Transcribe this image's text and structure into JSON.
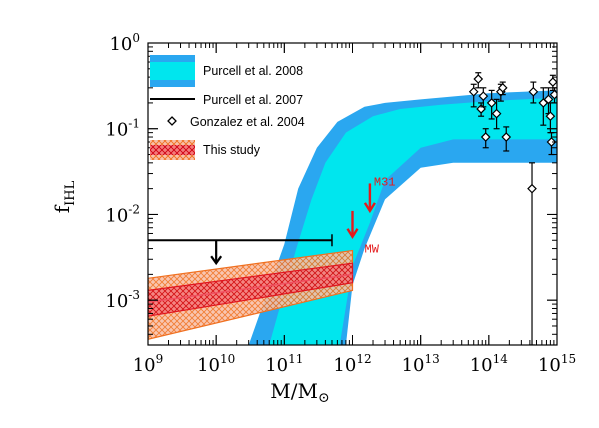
{
  "chart_data": {
    "type": "area",
    "xlabel": {
      "main": "M/M",
      "sub": "⊙"
    },
    "ylabel": {
      "main": "f",
      "sub": "IHL"
    },
    "x_scale": "log",
    "y_scale": "log",
    "xlim": [
      1000000000.0,
      1000000000000000.0
    ],
    "ylim": [
      0.0003,
      1
    ],
    "x_ticks": [
      {
        "value": 1000000000.0,
        "base": "10",
        "exp": "9"
      },
      {
        "value": 10000000000.0,
        "base": "10",
        "exp": "10"
      },
      {
        "value": 100000000000.0,
        "base": "10",
        "exp": "11"
      },
      {
        "value": 1000000000000.0,
        "base": "10",
        "exp": "12"
      },
      {
        "value": 10000000000000.0,
        "base": "10",
        "exp": "13"
      },
      {
        "value": 100000000000000.0,
        "base": "10",
        "exp": "14"
      },
      {
        "value": 1000000000000000.0,
        "base": "10",
        "exp": "15"
      }
    ],
    "y_ticks": [
      {
        "value": 0.001,
        "base": "10",
        "exp": "-3"
      },
      {
        "value": 0.01,
        "base": "10",
        "exp": "-2"
      },
      {
        "value": 0.1,
        "base": "10",
        "exp": "-1"
      },
      {
        "value": 1,
        "base": "10",
        "exp": "0"
      }
    ],
    "colors": {
      "purcell2008_outer": "#2aa7f0",
      "purcell2008_inner": "#00e6ee",
      "this_study_fill": "#f4a58a",
      "this_study_hatch_outer": "#f07020",
      "this_study_hatch_inner": "#e0141e",
      "this_study_center": "#f05060",
      "arrow_red": "#e41a1c",
      "black": "#000000"
    },
    "legend": {
      "placement": "top-left",
      "entries": [
        {
          "key": "purcell2008",
          "label": "Purcell et al. 2008"
        },
        {
          "key": "purcell2007",
          "label": "Purcell et al. 2007"
        },
        {
          "key": "gonzalez2004",
          "label": "Gonzalez et al. 2004"
        },
        {
          "key": "this_study",
          "label": "This study"
        }
      ]
    },
    "purcell2008_band": {
      "outer_upper": [
        [
          30000000000.0,
          0.0003
        ],
        [
          100000000000.0,
          0.0045
        ],
        [
          160000000000.0,
          0.02
        ],
        [
          300000000000.0,
          0.06
        ],
        [
          600000000000.0,
          0.12
        ],
        [
          1500000000000.0,
          0.18
        ],
        [
          3000000000000.0,
          0.2
        ],
        [
          10000000000000.0,
          0.22
        ],
        [
          100000000000000.0,
          0.26
        ],
        [
          1000000000000000.0,
          0.28
        ]
      ],
      "outer_lower": [
        [
          1000000000000000.0,
          0.04
        ],
        [
          100000000000000.0,
          0.04
        ],
        [
          30000000000000.0,
          0.04
        ],
        [
          10000000000000.0,
          0.035
        ],
        [
          3000000000000.0,
          0.015
        ],
        [
          1500000000000.0,
          0.004
        ],
        [
          1000000000000.0,
          0.0015
        ],
        [
          800000000000.0,
          0.0003
        ]
      ],
      "inner_upper": [
        [
          60000000000.0,
          0.0003
        ],
        [
          150000000000.0,
          0.004
        ],
        [
          250000000000.0,
          0.015
        ],
        [
          400000000000.0,
          0.04
        ],
        [
          800000000000.0,
          0.09
        ],
        [
          2000000000000.0,
          0.14
        ],
        [
          5000000000000.0,
          0.17
        ],
        [
          20000000000000.0,
          0.19
        ],
        [
          100000000000000.0,
          0.21
        ],
        [
          1000000000000000.0,
          0.23
        ]
      ],
      "inner_lower": [
        [
          1000000000000000.0,
          0.075
        ],
        [
          100000000000000.0,
          0.075
        ],
        [
          30000000000000.0,
          0.075
        ],
        [
          10000000000000.0,
          0.06
        ],
        [
          3000000000000.0,
          0.025
        ],
        [
          1800000000000.0,
          0.008
        ],
        [
          1000000000000.0,
          0.0025
        ],
        [
          650000000000.0,
          0.0003
        ]
      ]
    },
    "this_study": {
      "x_range": [
        1000000000.0,
        1000000000000.0
      ],
      "outer_lower_y": [
        0.00035,
        0.0013
      ],
      "outer_upper_y": [
        0.0018,
        0.0038
      ],
      "inner_lower_y": [
        0.00065,
        0.0016
      ],
      "inner_upper_y": [
        0.0013,
        0.0027
      ],
      "center_y": [
        0.00095,
        0.002
      ]
    },
    "purcell2007": {
      "x_range": [
        1000000000.0,
        500000000000.0
      ],
      "y": 0.005,
      "arrow_x": 10000000000.0,
      "arrow_to_y": 0.0027
    },
    "gonzalez2004": [
      {
        "x": 60000000000000.0,
        "y": 0.27,
        "lo": 0.18,
        "hi": 0.33
      },
      {
        "x": 70000000000000.0,
        "y": 0.38,
        "lo": 0.3,
        "hi": 0.45
      },
      {
        "x": 77000000000000.0,
        "y": 0.17,
        "lo": 0.14,
        "hi": 0.2
      },
      {
        "x": 83000000000000.0,
        "y": 0.24,
        "lo": 0.18,
        "hi": 0.3
      },
      {
        "x": 90000000000000.0,
        "y": 0.08,
        "lo": 0.06,
        "hi": 0.1
      },
      {
        "x": 110000000000000.0,
        "y": 0.2,
        "lo": 0.13,
        "hi": 0.28
      },
      {
        "x": 130000000000000.0,
        "y": 0.15,
        "lo": 0.1,
        "hi": 0.22
      },
      {
        "x": 150000000000000.0,
        "y": 0.27,
        "lo": 0.21,
        "hi": 0.33
      },
      {
        "x": 160000000000000.0,
        "y": 0.3,
        "lo": 0.25,
        "hi": 0.35
      },
      {
        "x": 180000000000000.0,
        "y": 0.08,
        "lo": 0.055,
        "hi": 0.105
      },
      {
        "x": 430000000000000.0,
        "y": 0.02,
        "lo": 0.0003,
        "hi": 0.04
      },
      {
        "x": 450000000000000.0,
        "y": 0.27,
        "lo": 0.2,
        "hi": 0.35
      },
      {
        "x": 630000000000000.0,
        "y": 0.2,
        "lo": 0.11,
        "hi": 0.3
      },
      {
        "x": 750000000000000.0,
        "y": 0.22,
        "lo": 0.15,
        "hi": 0.3
      },
      {
        "x": 800000000000000.0,
        "y": 0.14,
        "lo": 0.09,
        "hi": 0.2
      },
      {
        "x": 830000000000000.0,
        "y": 0.07,
        "lo": 0.05,
        "hi": 0.09
      },
      {
        "x": 870000000000000.0,
        "y": 0.35,
        "lo": 0.28,
        "hi": 0.42
      },
      {
        "x": 920000000000000.0,
        "y": 0.25,
        "lo": 0.2,
        "hi": 0.3
      }
    ],
    "annotations": [
      {
        "label": "M31",
        "x": 1800000000000.0,
        "arrow_from_y": 0.023,
        "arrow_to_y": 0.011
      },
      {
        "label": "MW",
        "x": 1000000000000.0,
        "arrow_from_y": 0.011,
        "arrow_to_y": 0.0055
      }
    ]
  }
}
